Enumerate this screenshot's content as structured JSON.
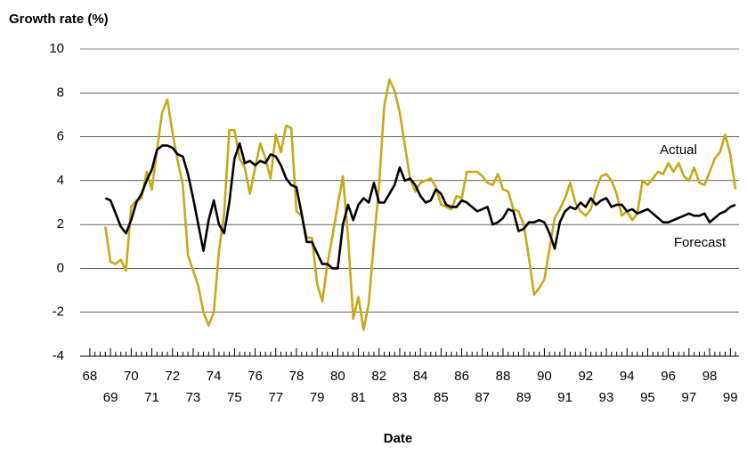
{
  "chart_data": {
    "type": "line",
    "y_label": "Growth rate (%)",
    "x_label": "Date",
    "x": [
      68.75,
      69,
      69.25,
      69.5,
      69.75,
      70,
      70.25,
      70.5,
      70.75,
      71,
      71.25,
      71.5,
      71.75,
      72,
      72.25,
      72.5,
      72.75,
      73,
      73.25,
      73.5,
      73.75,
      74,
      74.25,
      74.5,
      74.75,
      75,
      75.25,
      75.5,
      75.75,
      76,
      76.25,
      76.5,
      76.75,
      77,
      77.25,
      77.5,
      77.75,
      78,
      78.25,
      78.5,
      78.75,
      79,
      79.25,
      79.5,
      79.75,
      80,
      80.25,
      80.5,
      80.75,
      81,
      81.25,
      81.5,
      81.75,
      82,
      82.25,
      82.5,
      82.75,
      83,
      83.25,
      83.5,
      83.75,
      84,
      84.25,
      84.5,
      84.75,
      85,
      85.25,
      85.5,
      85.75,
      86,
      86.25,
      86.5,
      86.75,
      87,
      87.25,
      87.5,
      87.75,
      88,
      88.25,
      88.5,
      88.75,
      89,
      89.25,
      89.5,
      89.75,
      90,
      90.25,
      90.5,
      90.75,
      91,
      91.25,
      91.5,
      91.75,
      92,
      92.25,
      92.5,
      92.75,
      93,
      93.25,
      93.5,
      93.75,
      94,
      94.25,
      94.5,
      94.75,
      95,
      95.25,
      95.5,
      95.75,
      96,
      96.25,
      96.5,
      96.75,
      97,
      97.25,
      97.5,
      97.75,
      98,
      98.25,
      98.5,
      98.75,
      99,
      99.25
    ],
    "series": [
      {
        "name": "Actual",
        "color": "#c8a818",
        "values": [
          1.9,
          0.3,
          0.2,
          0.4,
          -0.1,
          2.8,
          3.1,
          3.2,
          4.4,
          3.6,
          5.4,
          7.1,
          7.7,
          6.2,
          4.9,
          3.8,
          0.6,
          -0.1,
          -0.8,
          -2.0,
          -2.6,
          -2.0,
          0.8,
          2.5,
          6.3,
          6.3,
          5.0,
          4.6,
          3.4,
          4.6,
          5.7,
          5.0,
          4.1,
          6.1,
          5.3,
          6.5,
          6.4,
          2.6,
          2.4,
          1.4,
          1.4,
          -0.7,
          -1.5,
          0.2,
          1.5,
          2.9,
          4.2,
          1.4,
          -2.3,
          -1.3,
          -2.8,
          -1.6,
          1.2,
          3.8,
          7.4,
          8.6,
          8.1,
          7.1,
          5.6,
          4.1,
          3.5,
          3.9,
          4.0,
          4.1,
          3.7,
          2.9,
          2.8,
          2.7,
          3.3,
          3.2,
          4.4,
          4.4,
          4.4,
          4.2,
          3.9,
          3.8,
          4.3,
          3.6,
          3.5,
          2.7,
          2.6,
          2.0,
          0.5,
          -1.2,
          -0.9,
          -0.5,
          0.9,
          2.3,
          2.7,
          3.2,
          3.9,
          3.0,
          2.6,
          2.4,
          2.7,
          3.6,
          4.2,
          4.3,
          4.0,
          3.4,
          2.4,
          2.6,
          2.2,
          2.5,
          4.0,
          3.8,
          4.1,
          4.4,
          4.3,
          4.8,
          4.4,
          4.8,
          4.2,
          4.0,
          4.6,
          3.9,
          3.8,
          4.4,
          5.0,
          5.3,
          6.1,
          5.2,
          3.6
        ]
      },
      {
        "name": "Forecast",
        "color": "#000000",
        "values": [
          3.2,
          3.1,
          2.5,
          1.9,
          1.6,
          2.2,
          3.0,
          3.4,
          4.0,
          4.5,
          5.4,
          5.6,
          5.6,
          5.5,
          5.2,
          5.1,
          4.3,
          3.2,
          2.0,
          0.8,
          2.2,
          3.1,
          2.0,
          1.6,
          3.0,
          5.0,
          5.7,
          4.8,
          4.9,
          4.7,
          4.9,
          4.8,
          5.2,
          5.1,
          4.7,
          4.1,
          3.8,
          3.7,
          2.5,
          1.2,
          1.2,
          0.7,
          0.2,
          0.2,
          0.0,
          0.0,
          2.0,
          2.9,
          2.2,
          2.9,
          3.2,
          3.0,
          3.9,
          3.0,
          3.0,
          3.4,
          3.8,
          4.6,
          4.0,
          4.1,
          3.8,
          3.3,
          3.0,
          3.1,
          3.6,
          3.4,
          2.9,
          2.8,
          2.8,
          3.1,
          3.0,
          2.8,
          2.6,
          2.7,
          2.8,
          2.0,
          2.1,
          2.3,
          2.7,
          2.6,
          1.7,
          1.8,
          2.1,
          2.1,
          2.2,
          2.1,
          1.6,
          0.9,
          2.1,
          2.6,
          2.8,
          2.7,
          3.0,
          2.8,
          3.2,
          2.9,
          3.1,
          3.2,
          2.8,
          2.9,
          2.9,
          2.6,
          2.7,
          2.5,
          2.6,
          2.7,
          2.5,
          2.3,
          2.1,
          2.1,
          2.2,
          2.3,
          2.4,
          2.5,
          2.4,
          2.4,
          2.5,
          2.1,
          2.3,
          2.5,
          2.6,
          2.8,
          2.9
        ]
      }
    ],
    "xlim": [
      67.53,
      99.42
    ],
    "xticks": [
      68,
      69,
      70,
      71,
      72,
      73,
      74,
      75,
      76,
      77,
      78,
      79,
      80,
      81,
      82,
      83,
      84,
      85,
      86,
      87,
      88,
      89,
      90,
      91,
      92,
      93,
      94,
      95,
      96,
      97,
      98,
      99
    ],
    "ylim": [
      -4,
      10
    ],
    "yticks": [
      -4,
      -2,
      0,
      2,
      4,
      6,
      8,
      10
    ],
    "grid": true
  }
}
